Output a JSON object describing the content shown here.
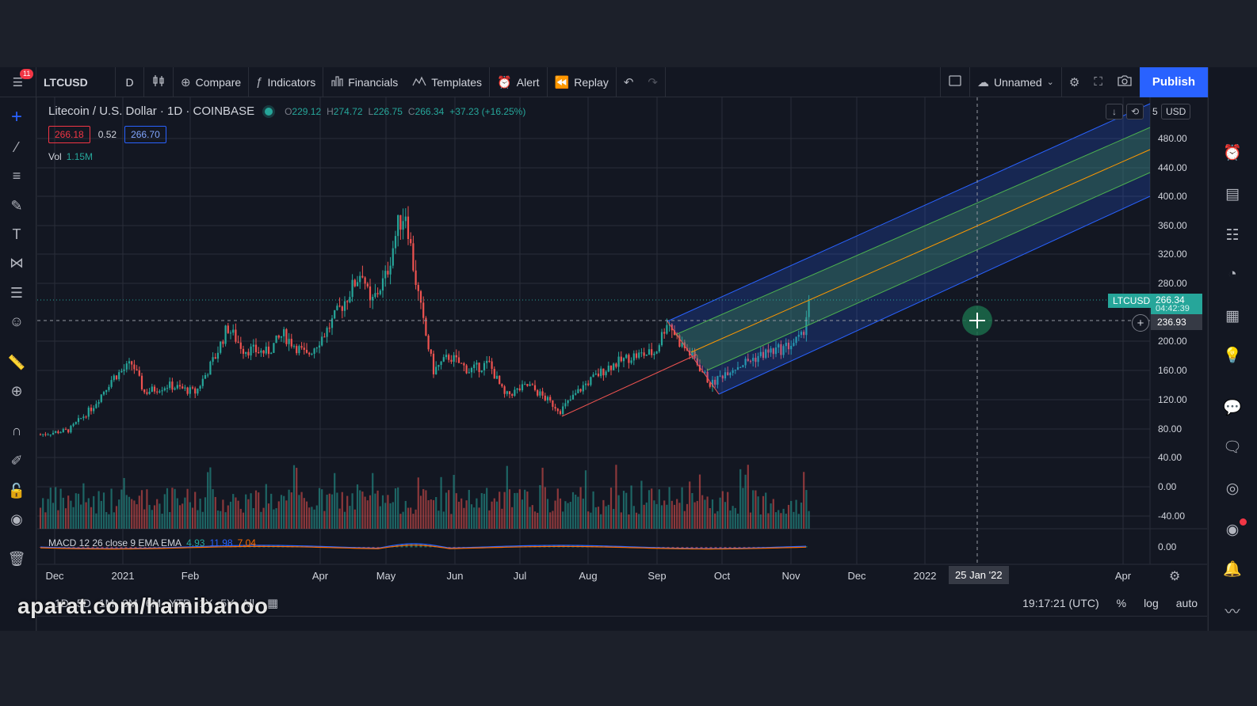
{
  "toolbar": {
    "notif_count": "11",
    "symbol": "LTCUSD",
    "interval": "D",
    "compare": "Compare",
    "indicators": "Indicators",
    "financials": "Financials",
    "templates": "Templates",
    "alert": "Alert",
    "replay": "Replay",
    "layout_name": "Unnamed",
    "publish": "Publish"
  },
  "legend": {
    "title": "Litecoin / U.S. Dollar · 1D · COINBASE",
    "o_label": "O",
    "o": "229.12",
    "h_label": "H",
    "h": "274.72",
    "l_label": "L",
    "l": "226.75",
    "c_label": "C",
    "c": "266.34",
    "change": "+37.23 (+16.25%)",
    "bid": "266.18",
    "spread": "0.52",
    "ask": "266.70",
    "vol_label": "Vol",
    "vol_value": "1.15M",
    "macd_label": "MACD 12 26 close 9 EMA EMA",
    "macd_v1": "4.93",
    "macd_v2": "11.98",
    "macd_v3": "7.04"
  },
  "price_axis": {
    "currency": "USD",
    "top_partial": "5",
    "labels": [
      "480.00",
      "440.00",
      "400.00",
      "360.00",
      "320.00",
      "280.00",
      "200.00",
      "160.00",
      "120.00",
      "80.00",
      "40.00",
      "0.00",
      "-40.00"
    ],
    "macd_label": "0.00",
    "symbol_tag": "LTCUSD",
    "last_price": "266.34",
    "countdown": "04:42:39",
    "crosshair_price": "236.93"
  },
  "time_axis": {
    "labels": [
      "Dec",
      "2021",
      "Feb",
      "Apr",
      "May",
      "Jun",
      "Jul",
      "Aug",
      "Sep",
      "Oct",
      "Nov",
      "Dec",
      "2022",
      "Apr"
    ],
    "crosshair_date": "25 Jan '22"
  },
  "bottombar": {
    "ranges": [
      "1D",
      "5D",
      "1M",
      "3M",
      "6M",
      "YTD",
      "1Y",
      "5Y",
      "All"
    ],
    "clock": "19:17:21 (UTC)",
    "percent": "%",
    "log": "log",
    "auto": "auto"
  },
  "watermark": "aparat.com/hamibanoo",
  "colors": {
    "up": "#26a69a",
    "down": "#ef5350",
    "accent": "#2962ff",
    "channel_fill": "#2962ff",
    "mid_band": "#4caf50",
    "median_line": "#ff9800"
  },
  "icons": {
    "left": [
      "crosshair-icon",
      "trend-line-icon",
      "fib-icon",
      "brush-icon",
      "text-icon",
      "pattern-icon",
      "forecast-icon",
      "emoji-icon",
      "ruler-icon",
      "zoom-icon",
      "magnet-icon",
      "lock-drawing-icon",
      "lock-icon",
      "eye-icon",
      "trash-icon"
    ],
    "right": [
      "watchlist-icon",
      "alarm-icon",
      "news-icon",
      "calendar-list-icon",
      "clock-icon",
      "grid-calendar-icon",
      "idea-bulb-icon",
      "chat-icon",
      "comment-icon",
      "streams-icon",
      "broadcast-icon",
      "bell-icon",
      "chart-wave-icon"
    ]
  }
}
